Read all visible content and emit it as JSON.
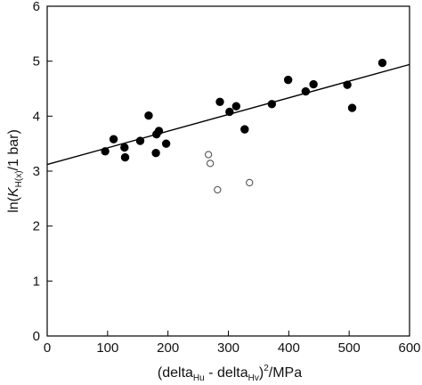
{
  "chart_data": {
    "type": "scatter",
    "xlabel": "(deltaHu - deltaHv)2/MPa",
    "xlabel_parts": {
      "open": "(delta",
      "sub1": "Hu",
      "mid": " - delta",
      "sub2": "Hv",
      "close": ")",
      "sup": "2",
      "unit": "/MPa"
    },
    "ylabel": "ln(KH(x)/1 bar)",
    "ylabel_parts": {
      "pre": "ln(",
      "k": "K",
      "sub": "H(x)",
      "post": "/1 bar)"
    },
    "xlim": [
      0,
      600
    ],
    "ylim": [
      0,
      6
    ],
    "xticks": [
      0,
      100,
      200,
      300,
      400,
      500,
      600
    ],
    "yticks": [
      0,
      1,
      2,
      3,
      4,
      5,
      6
    ],
    "grid": false,
    "series": [
      {
        "marker": "filled-circle",
        "color": "#000000",
        "points": [
          [
            96,
            3.36
          ],
          [
            110,
            3.58
          ],
          [
            128,
            3.43
          ],
          [
            129,
            3.25
          ],
          [
            154,
            3.55
          ],
          [
            168,
            4.01
          ],
          [
            180,
            3.33
          ],
          [
            181,
            3.67
          ],
          [
            185,
            3.73
          ],
          [
            197,
            3.5
          ],
          [
            286,
            4.26
          ],
          [
            302,
            4.08
          ],
          [
            313,
            4.18
          ],
          [
            327,
            3.76
          ],
          [
            372,
            4.22
          ],
          [
            399,
            4.66
          ],
          [
            428,
            4.45
          ],
          [
            441,
            4.58
          ],
          [
            497,
            4.57
          ],
          [
            505,
            4.15
          ],
          [
            555,
            4.97
          ]
        ]
      },
      {
        "marker": "open-circle",
        "color": "#555555",
        "points": [
          [
            267,
            3.3
          ],
          [
            270,
            3.14
          ],
          [
            282,
            2.66
          ],
          [
            335,
            2.79
          ]
        ]
      }
    ],
    "fit_line": {
      "x": [
        0,
        600
      ],
      "y": [
        3.12,
        4.94
      ],
      "color": "#000000"
    }
  }
}
